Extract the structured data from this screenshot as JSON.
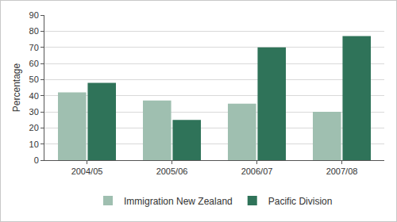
{
  "chart_data": {
    "type": "bar",
    "y_label": "Percentage",
    "categories": [
      "2004/05",
      "2005/06",
      "2006/07",
      "2007/08"
    ],
    "series": [
      {
        "name": "Immigration New Zealand",
        "color": "#9fbfb0",
        "values": [
          42,
          37,
          35,
          30
        ]
      },
      {
        "name": "Pacific Division",
        "color": "#2f7359",
        "values": [
          48,
          25,
          70,
          77
        ]
      }
    ],
    "ylim": [
      0,
      90
    ],
    "yticks": [
      0,
      10,
      20,
      30,
      40,
      50,
      60,
      70,
      80,
      90
    ],
    "grid": true,
    "legend": "bottom"
  }
}
